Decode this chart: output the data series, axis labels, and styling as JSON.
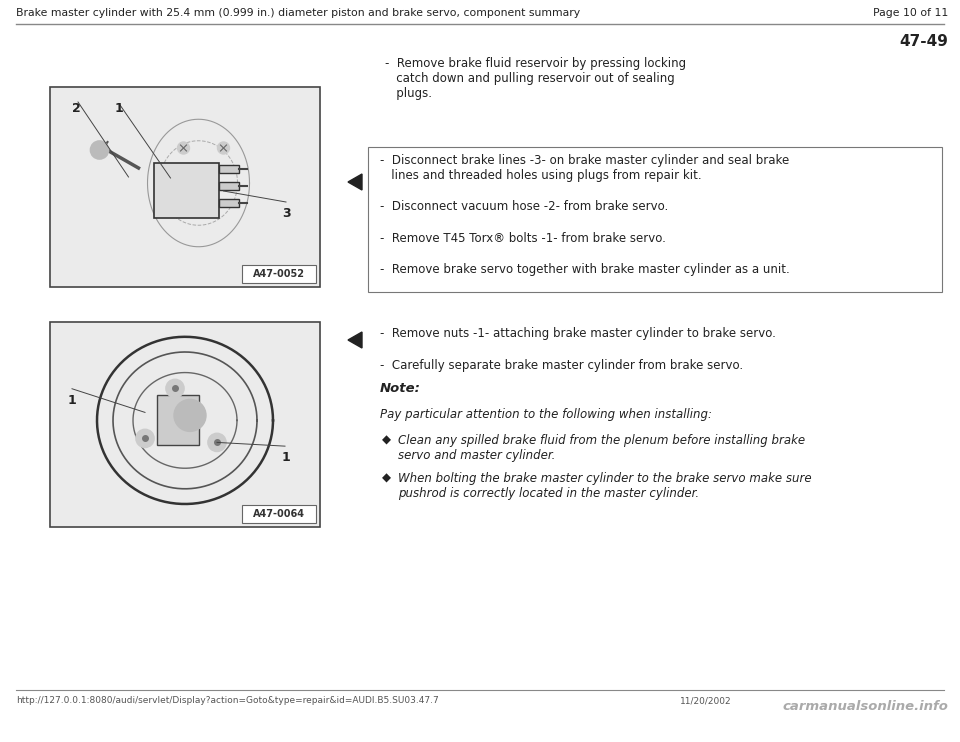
{
  "bg_color": "#ffffff",
  "header_title": "Brake master cylinder with 25.4 mm (0.999 in.) diameter piston and brake servo, component summary",
  "header_page": "Page 10 of 11",
  "section_number": "47-49",
  "footer_url": "http://127.0.0.1:8080/audi/servlet/Display?action=Goto&type=repair&id=AUDI.B5.SU03.47.7",
  "footer_date": "11/20/2002",
  "footer_brand": "carmanualsonline.info",
  "intro_text": [
    "-  Remove brake fluid reservoir by pressing locking",
    "   catch down and pulling reservoir out of sealing",
    "   plugs."
  ],
  "section1_lines": [
    "-  Disconnect brake lines -3- on brake master cylinder and seal brake",
    "   lines and threaded holes using plugs from repair kit.",
    "",
    "-  Disconnect vacuum hose -2- from brake servo.",
    "",
    "-  Remove T45 Torx® bolts -1- from brake servo.",
    "",
    "-  Remove brake servo together with brake master cylinder as a unit."
  ],
  "section2_lines": [
    "-  Remove nuts -1- attaching brake master cylinder to brake servo.",
    "",
    "-  Carefully separate brake master cylinder from brake servo."
  ],
  "note_title": "Note:",
  "note_intro": "Pay particular attention to the following when installing:",
  "note_bullets": [
    "Clean any spilled brake fluid from the plenum before installing brake",
    "servo and master cylinder.",
    "When bolting the brake master cylinder to the brake servo make sure",
    "pushrod is correctly located in the master cylinder."
  ],
  "img1_label": "A47-0052",
  "img2_label": "A47-0064",
  "text_color": "#222222",
  "header_color": "#222222",
  "line_color": "#888888",
  "img_border": "#444444",
  "img_bg": "#f8f8f8"
}
